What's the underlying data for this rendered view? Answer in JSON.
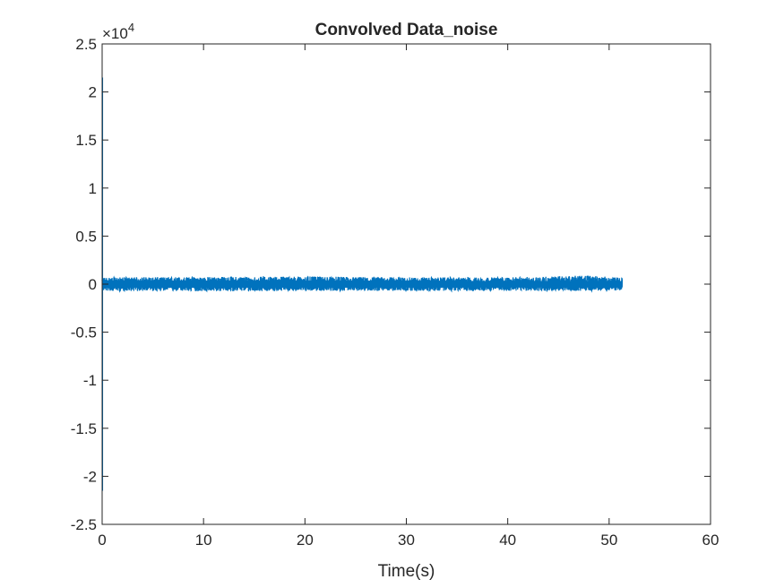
{
  "chart_data": {
    "type": "line",
    "title": "Convolved Data_noise",
    "xlabel": "Time(s)",
    "ylabel": "",
    "xlim": [
      0,
      60
    ],
    "ylim": [
      -25000,
      25000
    ],
    "x_ticks": [
      0,
      10,
      20,
      30,
      40,
      50,
      60
    ],
    "x_tick_labels": [
      "0",
      "10",
      "20",
      "30",
      "40",
      "50",
      "60"
    ],
    "y_ticks": [
      -25000,
      -20000,
      -15000,
      -10000,
      -5000,
      0,
      5000,
      10000,
      15000,
      20000,
      25000
    ],
    "y_tick_labels": [
      "-2.5",
      "-2",
      "-1.5",
      "-1",
      "-0.5",
      "0",
      "0.5",
      "1",
      "1.5",
      "2",
      "2.5"
    ],
    "y_exponent": {
      "base": "×10",
      "power": "4"
    },
    "grid": false,
    "box": true,
    "series": [
      {
        "color": "#0072BD",
        "x_range": [
          0,
          51.3
        ],
        "initial_spike": {
          "x": 0.03,
          "max": 21500,
          "min": -21500
        },
        "noise_envelope": [
          {
            "x": 0,
            "min": -700,
            "max": 700
          },
          {
            "x": 10,
            "min": -750,
            "max": 750
          },
          {
            "x": 20,
            "min": -700,
            "max": 800
          },
          {
            "x": 30,
            "min": -700,
            "max": 700
          },
          {
            "x": 40,
            "min": -700,
            "max": 700
          },
          {
            "x": 48,
            "min": -700,
            "max": 900
          },
          {
            "x": 51.3,
            "min": -650,
            "max": 650
          }
        ]
      }
    ]
  }
}
